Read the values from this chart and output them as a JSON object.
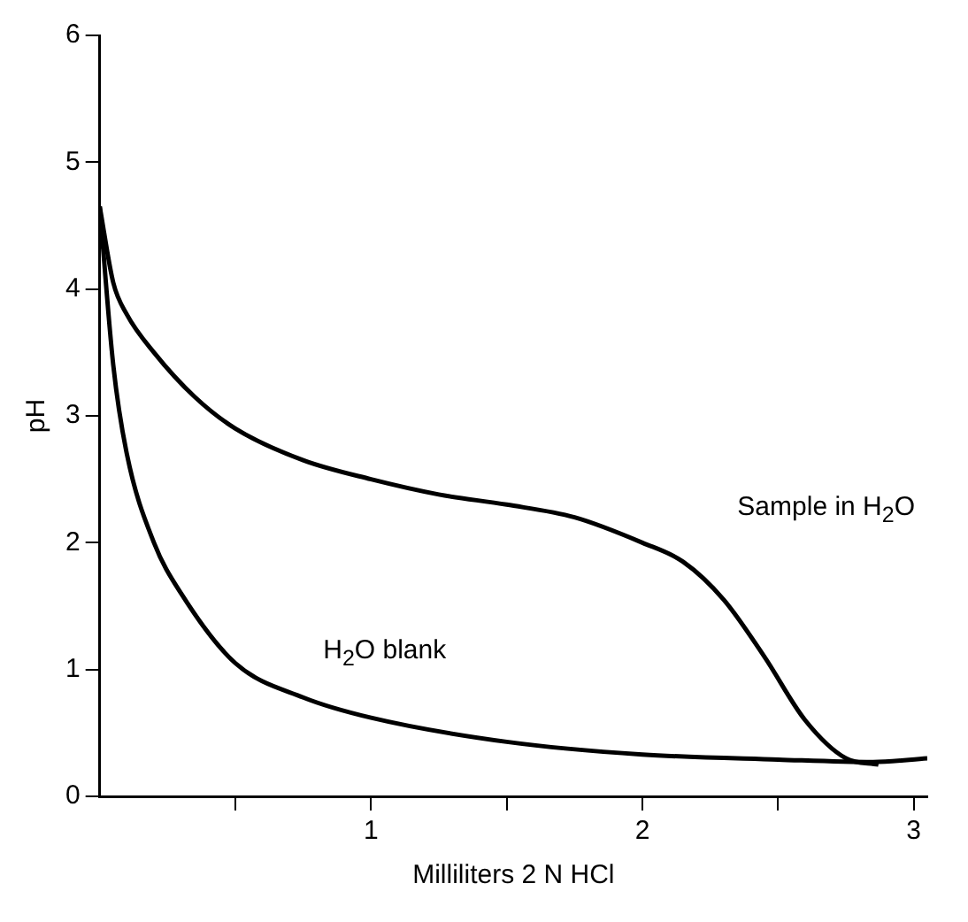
{
  "chart_data": {
    "type": "line",
    "xlabel": "Milliliters 2 N HCl",
    "ylabel": "pH",
    "xlim": [
      0,
      3.05
    ],
    "ylim": [
      0,
      6
    ],
    "xticks": [
      {
        "value": 0.5,
        "label": null
      },
      1,
      {
        "value": 1.5,
        "label": null
      },
      2,
      {
        "value": 2.5,
        "label": null
      },
      3
    ],
    "yticks": [
      0,
      1,
      2,
      3,
      4,
      5,
      6
    ],
    "grid": false,
    "legend": false,
    "marker": "none",
    "line_style": "solid",
    "series": [
      {
        "color": "#000000",
        "x": [
          0,
          0.05,
          0.1,
          0.2,
          0.35,
          0.5,
          0.75,
          1,
          1.25,
          1.5,
          1.75,
          2,
          2.15,
          2.3,
          2.45,
          2.6,
          2.75,
          2.87
        ],
        "values": [
          4.65,
          4.05,
          3.8,
          3.5,
          3.15,
          2.9,
          2.65,
          2.5,
          2.38,
          2.3,
          2.2,
          2.0,
          1.85,
          1.55,
          1.1,
          0.6,
          0.3,
          0.25
        ]
      },
      {
        "color": "#000000",
        "x": [
          0,
          0.05,
          0.1,
          0.2,
          0.3,
          0.5,
          0.75,
          1,
          1.5,
          2,
          2.5,
          2.85,
          3.05
        ],
        "values": [
          4.65,
          3.4,
          2.7,
          2.0,
          1.6,
          1.05,
          0.78,
          0.62,
          0.43,
          0.33,
          0.29,
          0.27,
          0.3
        ]
      }
    ],
    "annotations": [
      "Sample in H$_{2}$O",
      "H$_{2}$O blank"
    ]
  }
}
